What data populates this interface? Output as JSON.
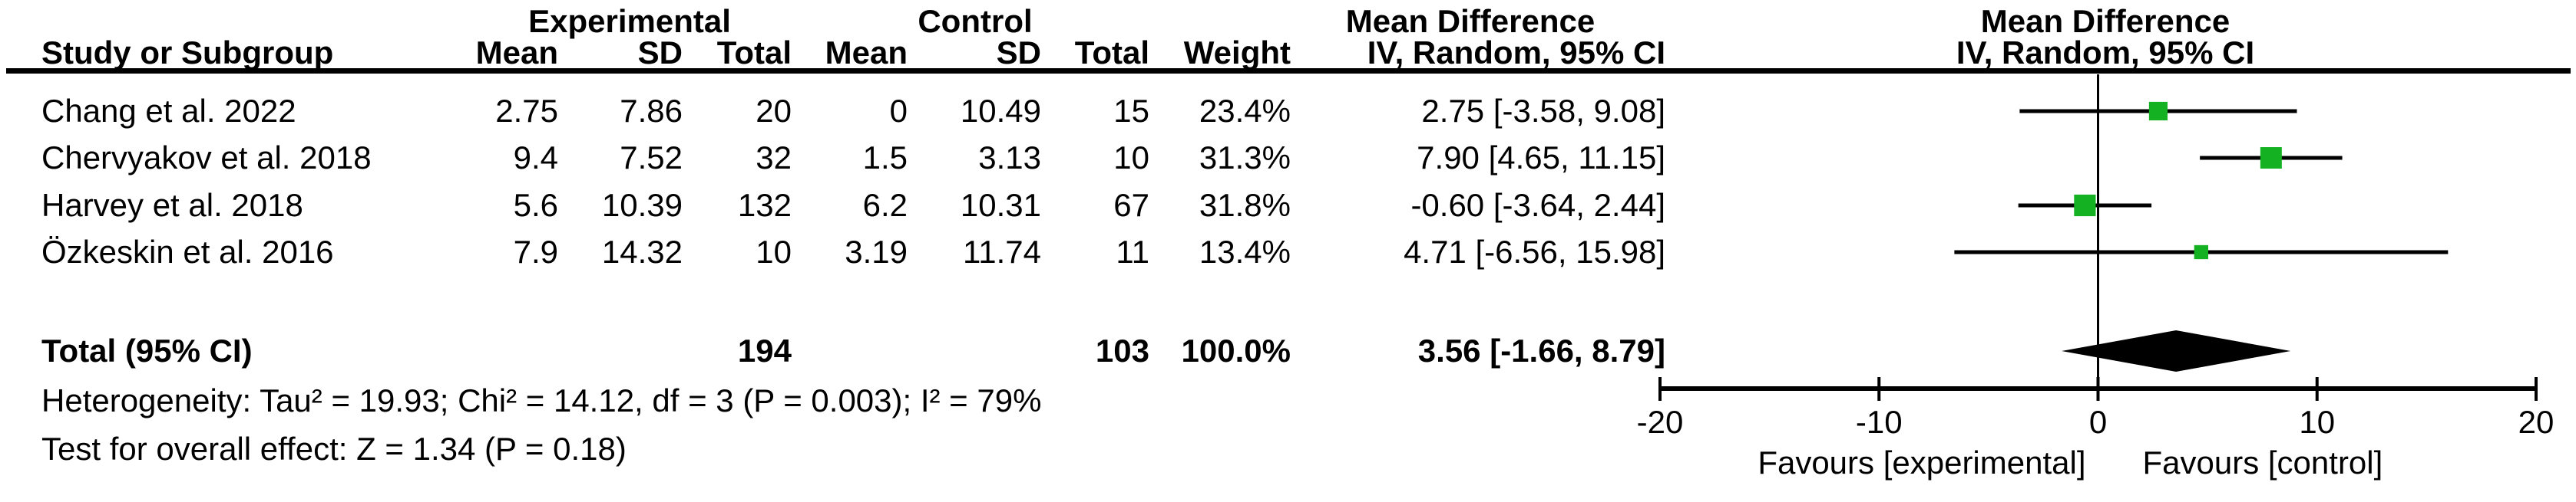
{
  "header": {
    "group_experimental": "Experimental",
    "group_control": "Control",
    "group_md_text": "Mean Difference",
    "group_md_plot": "Mean Difference",
    "study": "Study or Subgroup",
    "mean": "Mean",
    "sd": "SD",
    "total": "Total",
    "weight": "Weight",
    "iv_random": "IV, Random, 95% CI",
    "iv_random_plot": "IV, Random, 95% CI"
  },
  "table": {
    "studies": [
      {
        "name": "Chang et al. 2022",
        "exp_mean": "2.75",
        "exp_sd": "7.86",
        "exp_total": "20",
        "ctl_mean": "0",
        "ctl_sd": "10.49",
        "ctl_total": "15",
        "weight": "23.4%",
        "ci_text": "2.75 [-3.58, 9.08]"
      },
      {
        "name": "Chervyakov et al. 2018",
        "exp_mean": "9.4",
        "exp_sd": "7.52",
        "exp_total": "32",
        "ctl_mean": "1.5",
        "ctl_sd": "3.13",
        "ctl_total": "10",
        "weight": "31.3%",
        "ci_text": "7.90 [4.65, 11.15]"
      },
      {
        "name": "Harvey et al. 2018",
        "exp_mean": "5.6",
        "exp_sd": "10.39",
        "exp_total": "132",
        "ctl_mean": "6.2",
        "ctl_sd": "10.31",
        "ctl_total": "67",
        "weight": "31.8%",
        "ci_text": "-0.60 [-3.64, 2.44]"
      },
      {
        "name": "Özkeskin et al. 2016",
        "exp_mean": "7.9",
        "exp_sd": "14.32",
        "exp_total": "10",
        "ctl_mean": "3.19",
        "ctl_sd": "11.74",
        "ctl_total": "11",
        "weight": "13.4%",
        "ci_text": "4.71 [-6.56, 15.98]"
      }
    ],
    "total_row": {
      "label": "Total (95% CI)",
      "exp_total": "194",
      "ctl_total": "103",
      "weight": "100.0%",
      "ci_text": "3.56 [-1.66, 8.79]"
    },
    "heterogeneity": "Heterogeneity: Tau² = 19.93; Chi² = 14.12, df = 3 (P = 0.003); I² = 79%",
    "overall_effect": "Test for overall effect: Z = 1.34 (P = 0.18)"
  },
  "chart_data": {
    "type": "forest",
    "effect_measure": "Mean Difference, IV, Random, 95% CI",
    "x_axis": {
      "min": -20,
      "max": 20,
      "ticks": [
        -20,
        -10,
        0,
        10,
        20
      ]
    },
    "studies": [
      {
        "name": "Chang et al. 2022",
        "md": 2.75,
        "ci_low": -3.58,
        "ci_high": 9.08,
        "weight_pct": 23.4
      },
      {
        "name": "Chervyakov et al. 2018",
        "md": 7.9,
        "ci_low": 4.65,
        "ci_high": 11.15,
        "weight_pct": 31.3
      },
      {
        "name": "Harvey et al. 2018",
        "md": -0.6,
        "ci_low": -3.64,
        "ci_high": 2.44,
        "weight_pct": 31.8
      },
      {
        "name": "Özkeskin et al. 2016",
        "md": 4.71,
        "ci_low": -6.56,
        "ci_high": 15.98,
        "weight_pct": 13.4
      }
    ],
    "total": {
      "md": 3.56,
      "ci_low": -1.66,
      "ci_high": 8.79,
      "weight_pct": 100.0
    },
    "favours_left": "Favours [experimental]",
    "favours_right": "Favours [control]",
    "marker_color": "#14b223",
    "diamond_color": "#000000",
    "line_color": "#000000"
  }
}
